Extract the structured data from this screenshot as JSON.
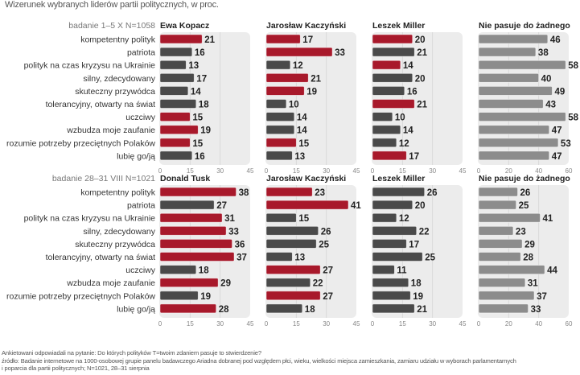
{
  "title": "Wizerunek wybranych liderów partii politycznych, w proc.",
  "colors": {
    "highlight": "#a8192b",
    "dark": "#4a4a4a",
    "none": "#8c8c8c",
    "panel_bg": "#ececec"
  },
  "footer": {
    "line1": "Ankietowani odpowiadali na pytanie: Do których polityków T=twoim zdaniem pasuje to stwierdzenie?",
    "line2": "źródło: Badanie internetowe na 1000-osobowej grupie panelu badawczego Ariadna dobranej pod względem płci, wieku, wielkości miejsca zamieszkania, zamiaru udziału w wyborach parlamentarnych",
    "line3": "i poparcia dla partii politycznych; N=1021, 28–31 sierpnia"
  },
  "chart_data": [
    {
      "type": "bar",
      "orientation": "horizontal",
      "survey": "badanie 1–5 X N=1058",
      "categories": [
        "kompetentny polityk",
        "patriota",
        "polityk na czas kryzysu na Ukrainie",
        "silny, zdecydowany",
        "skuteczny przywódca",
        "tolerancyjny, otwarty na świat",
        "uczciwy",
        "wzbudza moje zaufanie",
        "rozumie potrzeby przeciętnych Polaków",
        "lubię go/ją"
      ],
      "series": [
        {
          "name": "Ewa Kopacz",
          "values": [
            21,
            16,
            13,
            17,
            14,
            18,
            15,
            19,
            15,
            16
          ],
          "highlight": [
            true,
            false,
            false,
            false,
            false,
            false,
            true,
            true,
            true,
            false
          ],
          "xlim": [
            0,
            45
          ],
          "ticks": [
            0,
            15,
            30,
            45
          ]
        },
        {
          "name": "Jarosław Kaczyński",
          "values": [
            17,
            33,
            12,
            21,
            19,
            10,
            14,
            14,
            15,
            13
          ],
          "highlight": [
            true,
            true,
            false,
            true,
            true,
            false,
            false,
            false,
            true,
            false
          ],
          "xlim": [
            0,
            45
          ],
          "ticks": [
            0,
            15,
            30,
            45
          ]
        },
        {
          "name": "Leszek Miller",
          "values": [
            20,
            21,
            14,
            20,
            16,
            21,
            10,
            14,
            12,
            17
          ],
          "highlight": [
            true,
            false,
            true,
            false,
            false,
            true,
            false,
            false,
            false,
            true
          ],
          "xlim": [
            0,
            45
          ],
          "ticks": [
            0,
            15,
            30,
            45
          ]
        },
        {
          "name": "Nie pasuje do żadnego",
          "values": [
            46,
            38,
            58,
            40,
            49,
            43,
            58,
            47,
            53,
            47
          ],
          "highlight": [
            false,
            false,
            false,
            false,
            false,
            false,
            false,
            false,
            false,
            false
          ],
          "none": true,
          "xlim": [
            0,
            60
          ],
          "ticks": [
            0,
            20,
            40,
            60
          ]
        }
      ]
    },
    {
      "type": "bar",
      "orientation": "horizontal",
      "survey": "badanie 28–31 VIII N=1021",
      "categories": [
        "kompetentny polityk",
        "patriota",
        "polityk na czas kryzysu na Ukrainie",
        "silny, zdecydowany",
        "skuteczny przywódca",
        "tolerancyjny, otwarty na świat",
        "uczciwy",
        "wzbudza moje zaufanie",
        "rozumie potrzeby przeciętnych Polaków",
        "lubię go/ją"
      ],
      "series": [
        {
          "name": "Donald Tusk",
          "values": [
            38,
            27,
            31,
            33,
            36,
            37,
            18,
            29,
            19,
            28
          ],
          "highlight": [
            true,
            false,
            true,
            true,
            true,
            true,
            false,
            true,
            false,
            true
          ],
          "xlim": [
            0,
            45
          ],
          "ticks": [
            0,
            15,
            30,
            45
          ]
        },
        {
          "name": "Jarosław Kaczyński",
          "values": [
            23,
            41,
            15,
            26,
            25,
            13,
            27,
            22,
            27,
            18
          ],
          "highlight": [
            true,
            true,
            false,
            false,
            false,
            false,
            true,
            false,
            true,
            false
          ],
          "xlim": [
            0,
            45
          ],
          "ticks": [
            0,
            15,
            30,
            45
          ]
        },
        {
          "name": "Leszek Miller",
          "values": [
            26,
            20,
            12,
            22,
            17,
            25,
            11,
            18,
            19,
            21
          ],
          "highlight": [
            false,
            false,
            false,
            false,
            false,
            false,
            false,
            false,
            false,
            false
          ],
          "xlim": [
            0,
            45
          ],
          "ticks": [
            0,
            15,
            30,
            45
          ]
        },
        {
          "name": "Nie pasuje do żadnego",
          "values": [
            26,
            25,
            41,
            23,
            29,
            28,
            44,
            31,
            37,
            33
          ],
          "highlight": [
            false,
            false,
            false,
            false,
            false,
            false,
            false,
            false,
            false,
            false
          ],
          "none": true,
          "xlim": [
            0,
            60
          ],
          "ticks": [
            0,
            20,
            40,
            60
          ]
        }
      ]
    }
  ]
}
